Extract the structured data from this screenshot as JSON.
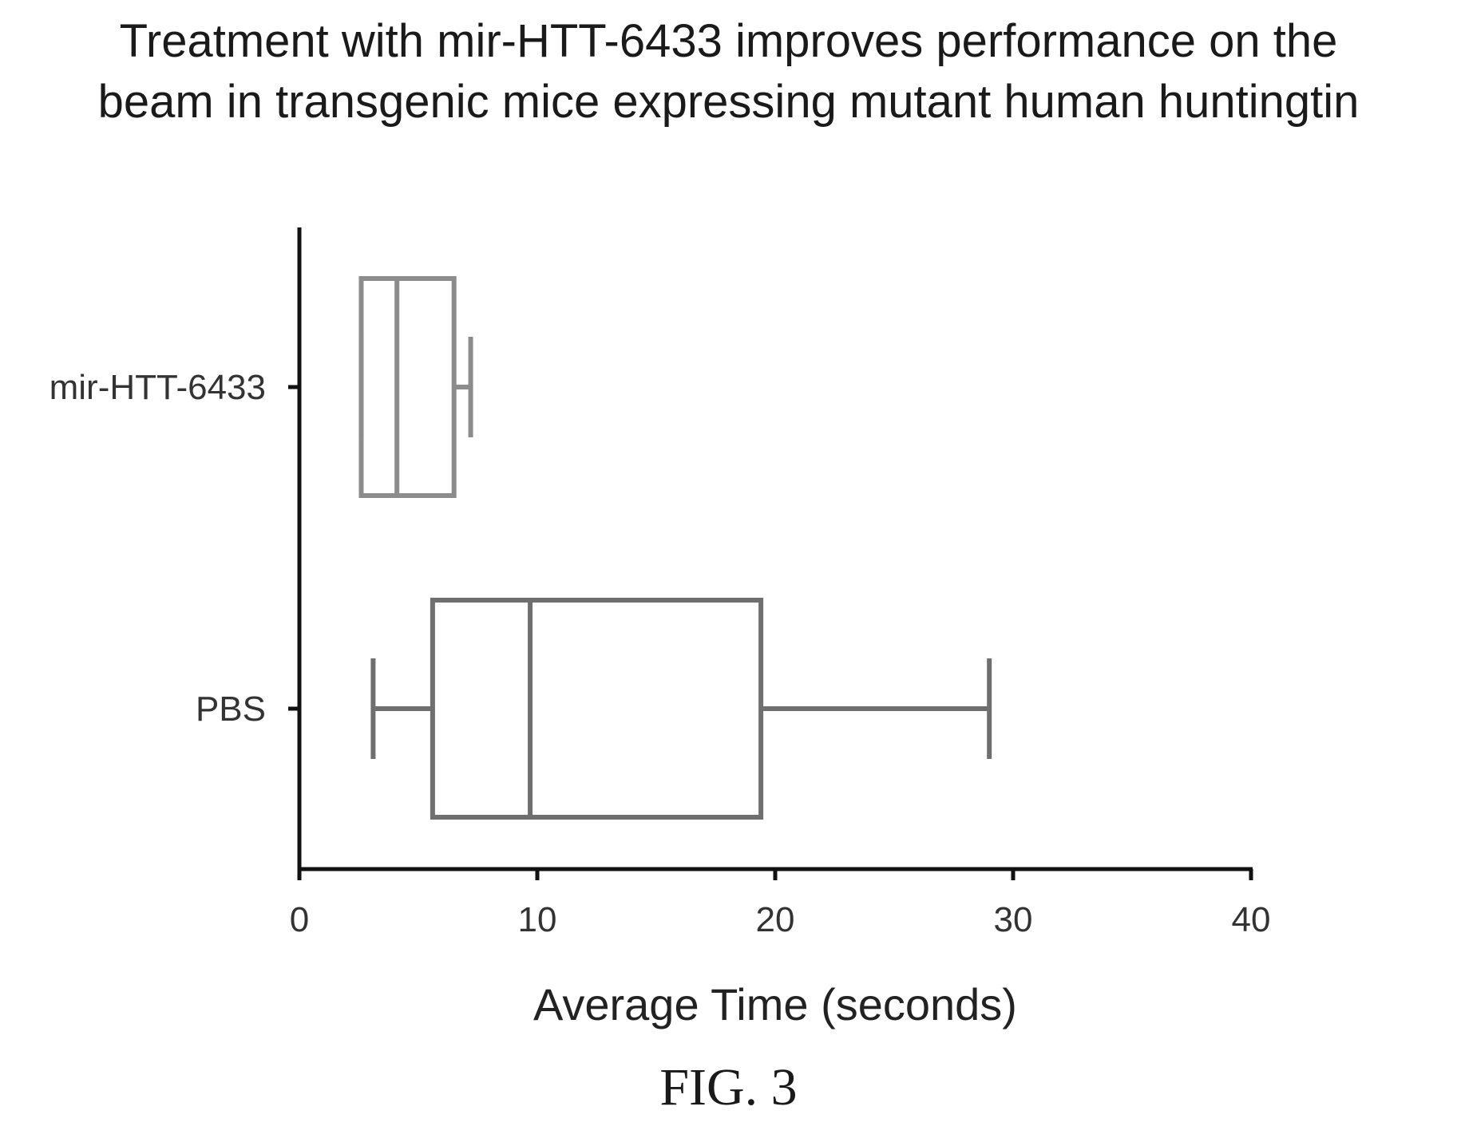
{
  "chart_data": {
    "type": "box",
    "title_lines": [
      "Treatment with mir-HTT-6433 improves performance on the",
      "beam in transgenic mice expressing mutant human huntingtin"
    ],
    "xlabel": "Average Time (seconds)",
    "ylabel": "",
    "xlim": [
      0,
      40
    ],
    "x_ticks": [
      0,
      10,
      20,
      30,
      40
    ],
    "orientation": "horizontal",
    "grid": false,
    "categories": [
      "mir-HTT-6433",
      "PBS"
    ],
    "series": [
      {
        "category": "mir-HTT-6433",
        "min": 2.6,
        "q1": 2.6,
        "median": 4.1,
        "q3": 6.5,
        "max": 7.2,
        "color": "#8c8c8c"
      },
      {
        "category": "PBS",
        "min": 3.1,
        "q1": 5.6,
        "median": 9.7,
        "q3": 19.4,
        "max": 29.0,
        "color": "#6f6f6f"
      }
    ],
    "axis_color": "#111111"
  },
  "caption": "FIG. 3"
}
